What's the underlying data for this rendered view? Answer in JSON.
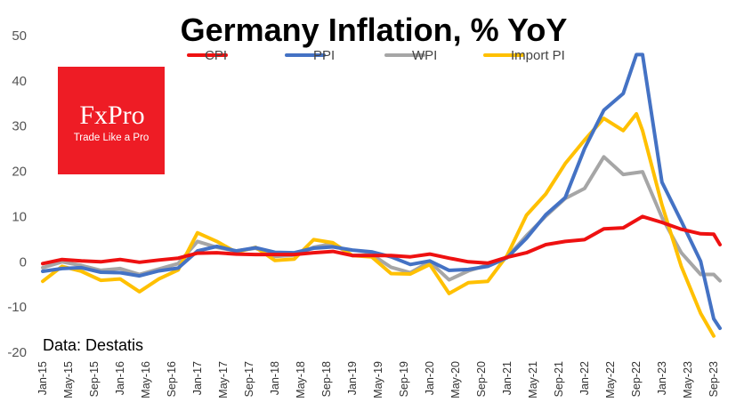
{
  "chart_data": {
    "type": "line",
    "title": "Germany Inflation, % YoY",
    "ylim": [
      -20,
      50
    ],
    "yticks": [
      -20,
      -10,
      0,
      10,
      20,
      30,
      40,
      50
    ],
    "x_range": [
      2015.0,
      2023.75
    ],
    "grid": false,
    "legend_position": "top",
    "source": "Data: Destatis",
    "x_tick_labels": [
      "Jan-15",
      "May-15",
      "Sep-15",
      "Jan-16",
      "May-16",
      "Sep-16",
      "Jan-17",
      "May-17",
      "Sep-17",
      "Jan-18",
      "May-18",
      "Sep-18",
      "Jan-19",
      "May-19",
      "Sep-19",
      "Jan-20",
      "May-20",
      "Sep-20",
      "Jan-21",
      "May-21",
      "Sep-21",
      "Jan-22",
      "May-22",
      "Sep-22",
      "Jan-23",
      "May-23",
      "Sep-23"
    ],
    "series": [
      {
        "name": "CPI",
        "color": "#ee1111",
        "points": [
          [
            2015.0,
            -0.4
          ],
          [
            2015.25,
            0.5
          ],
          [
            2015.5,
            0.2
          ],
          [
            2015.75,
            0.0
          ],
          [
            2016.0,
            0.5
          ],
          [
            2016.25,
            -0.1
          ],
          [
            2016.5,
            0.4
          ],
          [
            2016.75,
            0.8
          ],
          [
            2017.0,
            1.9
          ],
          [
            2017.25,
            2.0
          ],
          [
            2017.5,
            1.7
          ],
          [
            2017.75,
            1.6
          ],
          [
            2018.0,
            1.6
          ],
          [
            2018.25,
            1.6
          ],
          [
            2018.5,
            2.0
          ],
          [
            2018.75,
            2.3
          ],
          [
            2019.0,
            1.4
          ],
          [
            2019.25,
            1.4
          ],
          [
            2019.5,
            1.4
          ],
          [
            2019.75,
            1.1
          ],
          [
            2020.0,
            1.7
          ],
          [
            2020.25,
            0.8
          ],
          [
            2020.5,
            0.0
          ],
          [
            2020.75,
            -0.3
          ],
          [
            2021.0,
            1.0
          ],
          [
            2021.25,
            2.0
          ],
          [
            2021.5,
            3.8
          ],
          [
            2021.75,
            4.5
          ],
          [
            2022.0,
            4.9
          ],
          [
            2022.25,
            7.3
          ],
          [
            2022.5,
            7.5
          ],
          [
            2022.75,
            10.0
          ],
          [
            2023.0,
            8.7
          ],
          [
            2023.25,
            7.2
          ],
          [
            2023.5,
            6.2
          ],
          [
            2023.67,
            6.1
          ],
          [
            2023.75,
            3.8
          ]
        ]
      },
      {
        "name": "PPI",
        "color": "#4472c4",
        "points": [
          [
            2015.0,
            -2.1
          ],
          [
            2015.25,
            -1.5
          ],
          [
            2015.5,
            -1.3
          ],
          [
            2015.75,
            -2.3
          ],
          [
            2016.0,
            -2.4
          ],
          [
            2016.25,
            -3.1
          ],
          [
            2016.5,
            -2.0
          ],
          [
            2016.75,
            -1.4
          ],
          [
            2017.0,
            2.4
          ],
          [
            2017.25,
            3.4
          ],
          [
            2017.5,
            2.4
          ],
          [
            2017.75,
            3.1
          ],
          [
            2018.0,
            2.1
          ],
          [
            2018.25,
            2.0
          ],
          [
            2018.5,
            3.0
          ],
          [
            2018.75,
            3.3
          ],
          [
            2019.0,
            2.6
          ],
          [
            2019.25,
            2.2
          ],
          [
            2019.5,
            1.1
          ],
          [
            2019.75,
            -0.6
          ],
          [
            2020.0,
            0.2
          ],
          [
            2020.25,
            -1.9
          ],
          [
            2020.5,
            -1.7
          ],
          [
            2020.75,
            -1.0
          ],
          [
            2021.0,
            0.9
          ],
          [
            2021.25,
            5.2
          ],
          [
            2021.5,
            10.4
          ],
          [
            2021.75,
            14.2
          ],
          [
            2022.0,
            25.0
          ],
          [
            2022.25,
            33.5
          ],
          [
            2022.5,
            37.2
          ],
          [
            2022.67,
            45.8
          ],
          [
            2022.75,
            45.8
          ],
          [
            2023.0,
            17.6
          ],
          [
            2023.25,
            9.0
          ],
          [
            2023.5,
            0.1
          ],
          [
            2023.67,
            -12.6
          ],
          [
            2023.75,
            -14.7
          ]
        ]
      },
      {
        "name": "WPI",
        "color": "#a6a6a6",
        "points": [
          [
            2015.0,
            -1.3
          ],
          [
            2015.25,
            0.0
          ],
          [
            2015.5,
            -0.8
          ],
          [
            2015.75,
            -1.9
          ],
          [
            2016.0,
            -1.5
          ],
          [
            2016.25,
            -2.8
          ],
          [
            2016.5,
            -1.6
          ],
          [
            2016.75,
            -0.4
          ],
          [
            2017.0,
            4.5
          ],
          [
            2017.25,
            3.2
          ],
          [
            2017.5,
            2.4
          ],
          [
            2017.75,
            3.0
          ],
          [
            2018.0,
            1.2
          ],
          [
            2018.25,
            1.5
          ],
          [
            2018.5,
            3.2
          ],
          [
            2018.75,
            4.0
          ],
          [
            2019.0,
            1.4
          ],
          [
            2019.25,
            1.6
          ],
          [
            2019.5,
            -1.2
          ],
          [
            2019.75,
            -2.4
          ],
          [
            2020.0,
            0.0
          ],
          [
            2020.25,
            -4.0
          ],
          [
            2020.5,
            -2.0
          ],
          [
            2020.75,
            -0.7
          ],
          [
            2021.0,
            1.0
          ],
          [
            2021.25,
            5.8
          ],
          [
            2021.5,
            10.1
          ],
          [
            2021.75,
            14.0
          ],
          [
            2022.0,
            16.2
          ],
          [
            2022.25,
            23.2
          ],
          [
            2022.5,
            19.3
          ],
          [
            2022.75,
            19.9
          ],
          [
            2023.0,
            9.8
          ],
          [
            2023.25,
            2.0
          ],
          [
            2023.5,
            -2.8
          ],
          [
            2023.67,
            -2.8
          ],
          [
            2023.75,
            -4.2
          ]
        ]
      },
      {
        "name": "Import PI",
        "color": "#ffc000",
        "points": [
          [
            2015.0,
            -4.3
          ],
          [
            2015.25,
            -1.0
          ],
          [
            2015.5,
            -2.1
          ],
          [
            2015.75,
            -4.1
          ],
          [
            2016.0,
            -3.8
          ],
          [
            2016.25,
            -6.6
          ],
          [
            2016.5,
            -3.8
          ],
          [
            2016.75,
            -1.8
          ],
          [
            2017.0,
            6.4
          ],
          [
            2017.25,
            4.5
          ],
          [
            2017.5,
            2.1
          ],
          [
            2017.75,
            3.2
          ],
          [
            2018.0,
            0.3
          ],
          [
            2018.25,
            0.6
          ],
          [
            2018.5,
            4.9
          ],
          [
            2018.75,
            4.2
          ],
          [
            2019.0,
            1.4
          ],
          [
            2019.25,
            1.1
          ],
          [
            2019.5,
            -2.6
          ],
          [
            2019.75,
            -2.7
          ],
          [
            2020.0,
            -0.6
          ],
          [
            2020.25,
            -7.0
          ],
          [
            2020.5,
            -4.6
          ],
          [
            2020.75,
            -4.3
          ],
          [
            2021.0,
            1.4
          ],
          [
            2021.25,
            10.3
          ],
          [
            2021.5,
            15.0
          ],
          [
            2021.75,
            21.7
          ],
          [
            2022.0,
            26.9
          ],
          [
            2022.25,
            31.7
          ],
          [
            2022.5,
            29.0
          ],
          [
            2022.67,
            32.7
          ],
          [
            2022.75,
            29.0
          ],
          [
            2023.0,
            12.6
          ],
          [
            2023.25,
            -1.0
          ],
          [
            2023.5,
            -11.4
          ],
          [
            2023.67,
            -16.4
          ]
        ]
      }
    ]
  },
  "branding": {
    "name": "FxPro",
    "tagline": "Trade Like a Pro",
    "color": "#ee1c25"
  }
}
